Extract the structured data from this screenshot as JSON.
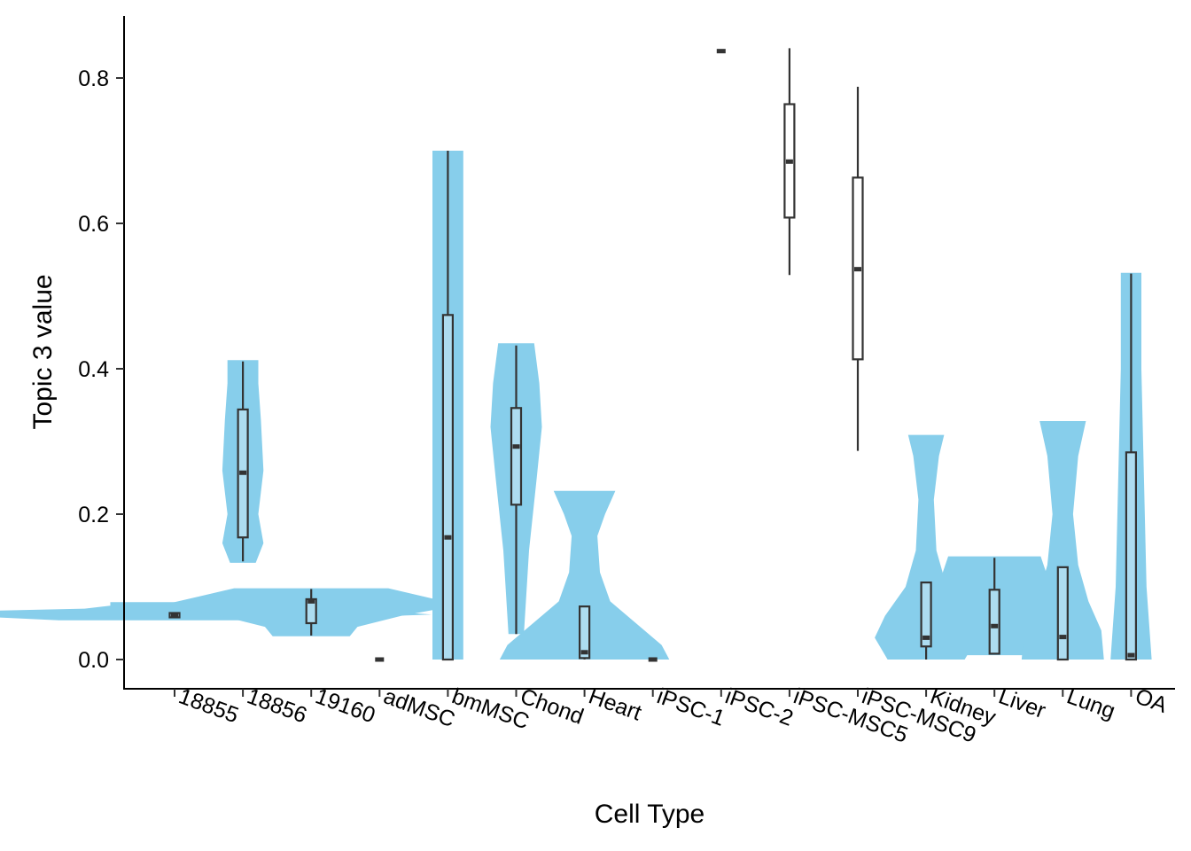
{
  "chart_data": {
    "type": "violin",
    "xlabel": "Cell Type",
    "ylabel": "Topic 3 value",
    "ylim": [
      -0.04,
      0.88
    ],
    "yticks": [
      0.0,
      0.2,
      0.4,
      0.6,
      0.8
    ],
    "ytick_labels": [
      "0.0",
      "0.2",
      "0.4",
      "0.6",
      "0.8"
    ],
    "grid": false,
    "violin_color": "#87CEEB",
    "box_fill_with_violin": "#ADDCF0",
    "box_fill_no_violin": "#FFFFFF",
    "box_stroke": "#333333",
    "categories": [
      "18855",
      "18856",
      "19160",
      "adMSC",
      "bmMSC",
      "Chond",
      "Heart",
      "iPSC-1",
      "iPSC-2",
      "iPSC-MSC5",
      "iPSC-MSC9",
      "Kidney",
      "Liver",
      "Lung",
      "OA"
    ],
    "boxes": [
      {
        "name": "18855",
        "min": 0.057,
        "q1": 0.058,
        "median": 0.06,
        "q3": 0.064,
        "max": 0.065
      },
      {
        "name": "18856",
        "min": 0.135,
        "q1": 0.168,
        "median": 0.257,
        "q3": 0.344,
        "max": 0.41
      },
      {
        "name": "19160",
        "min": 0.033,
        "q1": 0.05,
        "median": 0.08,
        "q3": 0.083,
        "max": 0.097
      },
      {
        "name": "adMSC",
        "min": 0.0,
        "q1": 0.0,
        "median": 0.0,
        "q3": 0.0,
        "max": 0.0
      },
      {
        "name": "bmMSC",
        "min": 0.0,
        "q1": 0.0,
        "median": 0.168,
        "q3": 0.474,
        "max": 0.7
      },
      {
        "name": "Chond",
        "min": 0.035,
        "q1": 0.213,
        "median": 0.293,
        "q3": 0.346,
        "max": 0.432
      },
      {
        "name": "Heart",
        "min": 0.0,
        "q1": 0.002,
        "median": 0.01,
        "q3": 0.073,
        "max": 0.073
      },
      {
        "name": "iPSC-1",
        "min": 0.0,
        "q1": 0.0,
        "median": 0.0,
        "q3": 0.0,
        "max": 0.0
      },
      {
        "name": "iPSC-2",
        "min": 0.837,
        "q1": 0.837,
        "median": 0.837,
        "q3": 0.837,
        "max": 0.837
      },
      {
        "name": "iPSC-MSC5",
        "min": 0.529,
        "q1": 0.608,
        "median": 0.685,
        "q3": 0.764,
        "max": 0.841
      },
      {
        "name": "iPSC-MSC9",
        "min": 0.287,
        "q1": 0.413,
        "median": 0.537,
        "q3": 0.663,
        "max": 0.788
      },
      {
        "name": "Kidney",
        "min": 0.0,
        "q1": 0.018,
        "median": 0.03,
        "q3": 0.106,
        "max": 0.106
      },
      {
        "name": "Liver",
        "min": 0.008,
        "q1": 0.008,
        "median": 0.046,
        "q3": 0.096,
        "max": 0.14
      },
      {
        "name": "Lung",
        "min": 0.0,
        "q1": 0.0,
        "median": 0.031,
        "q3": 0.127,
        "max": 0.127
      },
      {
        "name": "OA",
        "min": 0.0,
        "q1": 0.0,
        "median": 0.006,
        "q3": 0.285,
        "max": 0.531
      }
    ],
    "violins": [
      {
        "name": "18855",
        "ymin": 0.054,
        "ymax": 0.079,
        "profile": [
          [
            0.054,
            0.45
          ],
          [
            0.058,
            0.7
          ],
          [
            0.062,
            1.0
          ],
          [
            0.066,
            0.85
          ],
          [
            0.07,
            0.35
          ],
          [
            0.074,
            0.25
          ],
          [
            0.079,
            0.25
          ]
        ]
      },
      {
        "name": "18856",
        "ymin": 0.133,
        "ymax": 0.412,
        "profile": [
          [
            0.133,
            0.05
          ],
          [
            0.16,
            0.08
          ],
          [
            0.2,
            0.06
          ],
          [
            0.26,
            0.08
          ],
          [
            0.33,
            0.07
          ],
          [
            0.38,
            0.06
          ],
          [
            0.412,
            0.06
          ]
        ]
      },
      {
        "name": "19160",
        "ymin": 0.032,
        "ymax": 0.098,
        "profile": [
          [
            0.032,
            0.15
          ],
          [
            0.045,
            0.18
          ],
          [
            0.06,
            0.35
          ],
          [
            0.075,
            0.58
          ],
          [
            0.088,
            0.42
          ],
          [
            0.098,
            0.3
          ]
        ]
      },
      {
        "name": "adMSC",
        "ymin": 0.0,
        "ymax": 0.0,
        "profile": []
      },
      {
        "name": "bmMSC",
        "ymin": 0.0,
        "ymax": 0.7,
        "profile": [
          [
            0.0,
            0.06
          ],
          [
            0.2,
            0.06
          ],
          [
            0.4,
            0.06
          ],
          [
            0.6,
            0.06
          ],
          [
            0.7,
            0.06
          ]
        ]
      },
      {
        "name": "Chond",
        "ymin": 0.035,
        "ymax": 0.435,
        "profile": [
          [
            0.035,
            0.03
          ],
          [
            0.15,
            0.05
          ],
          [
            0.25,
            0.08
          ],
          [
            0.32,
            0.1
          ],
          [
            0.38,
            0.09
          ],
          [
            0.435,
            0.07
          ]
        ]
      },
      {
        "name": "Heart",
        "ymin": 0.0,
        "ymax": 0.232,
        "profile": [
          [
            0.0,
            0.33
          ],
          [
            0.02,
            0.3
          ],
          [
            0.05,
            0.2
          ],
          [
            0.08,
            0.1
          ],
          [
            0.12,
            0.06
          ],
          [
            0.17,
            0.05
          ],
          [
            0.2,
            0.08
          ],
          [
            0.232,
            0.12
          ]
        ]
      },
      {
        "name": "iPSC-1",
        "ymin": 0.0,
        "ymax": 0.0,
        "profile": []
      },
      {
        "name": "iPSC-2",
        "ymin": 0.837,
        "ymax": 0.837,
        "profile": []
      },
      {
        "name": "iPSC-MSC5",
        "ymin": 0.529,
        "ymax": 0.841,
        "profile": []
      },
      {
        "name": "iPSC-MSC9",
        "ymin": 0.287,
        "ymax": 0.788,
        "profile": []
      },
      {
        "name": "Kidney",
        "ymin": 0.0,
        "ymax": 0.309,
        "profile": [
          [
            0.0,
            0.15
          ],
          [
            0.03,
            0.2
          ],
          [
            0.06,
            0.16
          ],
          [
            0.1,
            0.08
          ],
          [
            0.15,
            0.04
          ],
          [
            0.22,
            0.03
          ],
          [
            0.28,
            0.05
          ],
          [
            0.309,
            0.07
          ]
        ]
      },
      {
        "name": "Liver",
        "ymin": 0.006,
        "ymax": 0.142,
        "profile": [
          [
            0.006,
            0.18
          ],
          [
            0.03,
            0.24
          ],
          [
            0.06,
            0.26
          ],
          [
            0.1,
            0.22
          ],
          [
            0.142,
            0.18
          ]
        ]
      },
      {
        "name": "Lung",
        "ymin": 0.0,
        "ymax": 0.328,
        "profile": [
          [
            0.0,
            0.16
          ],
          [
            0.04,
            0.15
          ],
          [
            0.08,
            0.1
          ],
          [
            0.13,
            0.06
          ],
          [
            0.2,
            0.04
          ],
          [
            0.28,
            0.06
          ],
          [
            0.328,
            0.09
          ]
        ]
      },
      {
        "name": "OA",
        "ymin": 0.0,
        "ymax": 0.532,
        "profile": [
          [
            0.0,
            0.08
          ],
          [
            0.1,
            0.06
          ],
          [
            0.25,
            0.05
          ],
          [
            0.4,
            0.04
          ],
          [
            0.532,
            0.04
          ]
        ]
      }
    ],
    "point_markers": [
      "adMSC",
      "iPSC-1",
      "iPSC-2"
    ]
  }
}
